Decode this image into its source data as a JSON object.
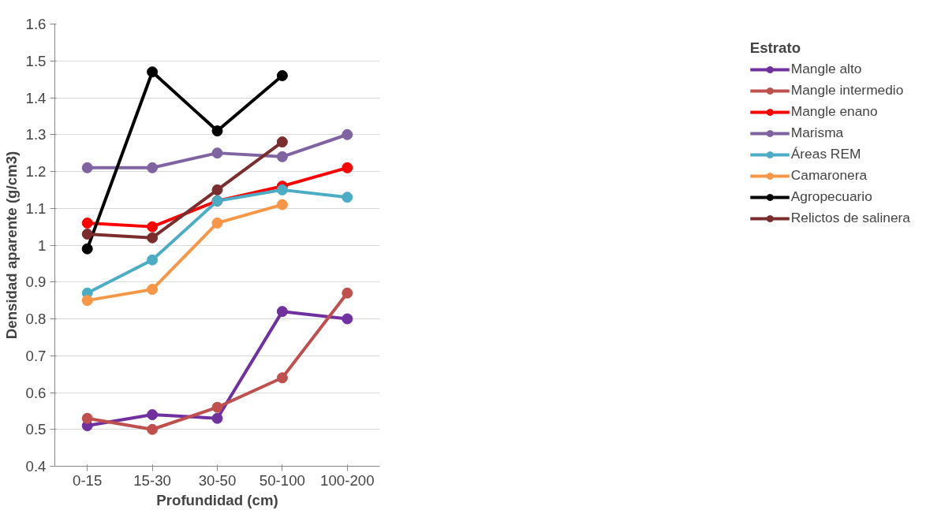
{
  "chart_data": {
    "type": "line",
    "xlabel": "Profundidad (cm)",
    "ylabel": "Densidad aparente (g/cm3)",
    "legend_title": "Estrato",
    "categories": [
      "0-15",
      "15-30",
      "30-50",
      "50-100",
      "100-200"
    ],
    "ylim": [
      0.4,
      1.6
    ],
    "yticks": [
      0.4,
      0.5,
      0.6,
      0.7,
      0.8,
      0.9,
      1,
      1.1,
      1.2,
      1.3,
      1.4,
      1.5,
      1.6
    ],
    "grid": "y",
    "legend": "right",
    "marker": "circle",
    "line_style": "solid",
    "series": [
      {
        "name": "Mangle alto",
        "color": "#7030a0",
        "values": [
          0.51,
          0.54,
          0.53,
          0.82,
          0.8
        ]
      },
      {
        "name": "Mangle intermedio",
        "color": "#c0504d",
        "values": [
          0.53,
          0.5,
          0.56,
          0.64,
          0.87
        ]
      },
      {
        "name": "Mangle enano",
        "color": "#ff0000",
        "values": [
          1.06,
          1.05,
          1.12,
          1.16,
          1.21
        ]
      },
      {
        "name": "Marisma",
        "color": "#8064a2",
        "values": [
          1.21,
          1.21,
          1.25,
          1.24,
          1.3
        ]
      },
      {
        "name": "Áreas REM",
        "color": "#4bacc6",
        "values": [
          0.87,
          0.96,
          1.12,
          1.15,
          1.13
        ]
      },
      {
        "name": "Camaronera",
        "color": "#f79646",
        "values": [
          0.85,
          0.88,
          1.06,
          1.11,
          null
        ]
      },
      {
        "name": "Agropecuario",
        "color": "#000000",
        "values": [
          0.99,
          1.47,
          1.31,
          1.46,
          null
        ]
      },
      {
        "name": "Relictos de salinera",
        "color": "#7b2c2c",
        "values": [
          1.03,
          1.02,
          1.15,
          1.28,
          null
        ]
      }
    ]
  }
}
